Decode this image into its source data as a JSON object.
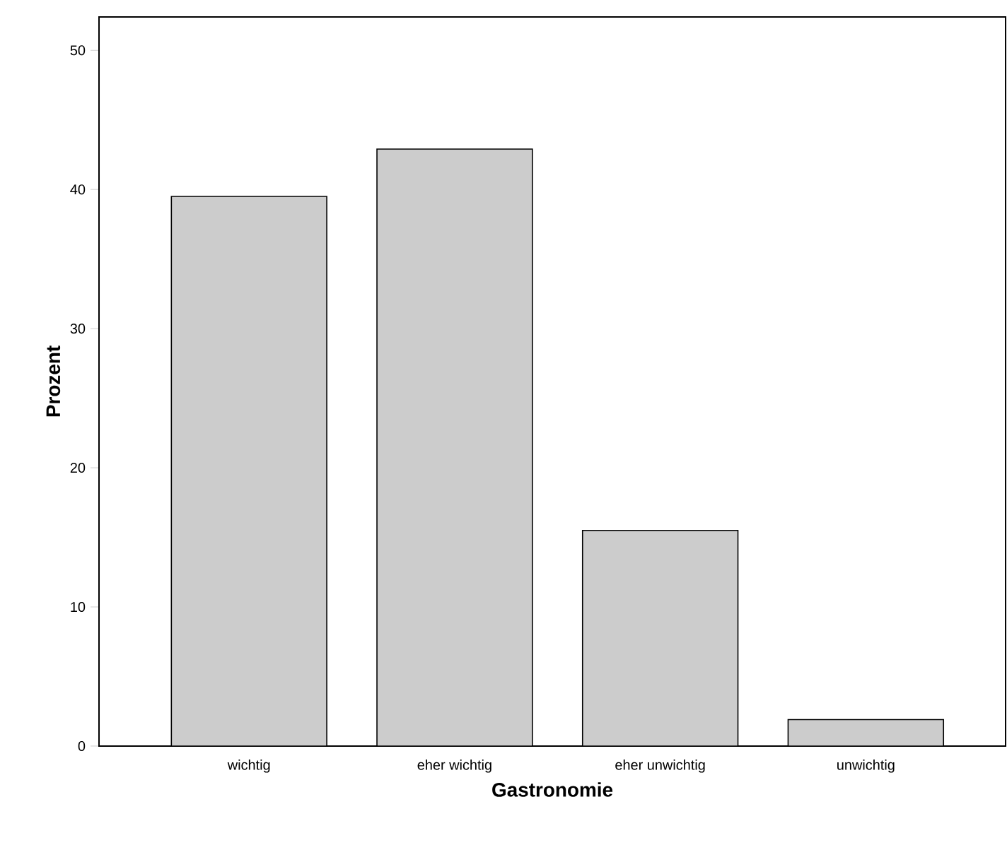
{
  "chart_data": {
    "type": "bar",
    "xlabel": "Gastronomie",
    "ylabel": "Prozent",
    "categories": [
      "wichtig",
      "eher wichtig",
      "eher unwichtig",
      "unwichtig"
    ],
    "values": [
      39.5,
      42.9,
      15.5,
      1.9
    ],
    "color": "#cccccc",
    "ylim": [
      0,
      52.4
    ],
    "yticks": [
      0,
      10,
      20,
      30,
      40,
      50
    ]
  }
}
